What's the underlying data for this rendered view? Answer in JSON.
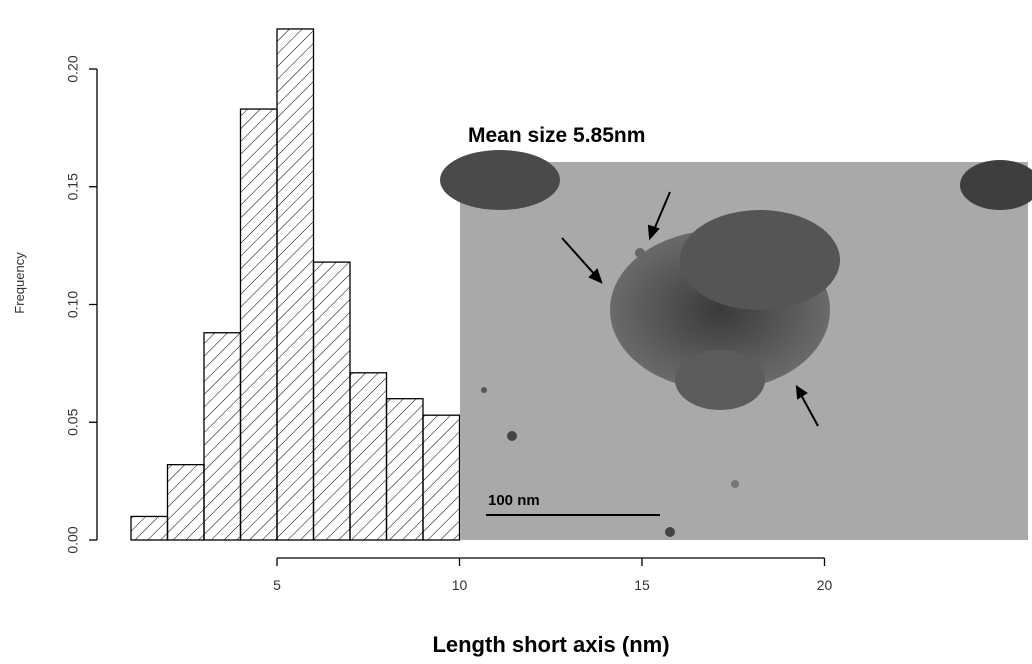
{
  "chart_data": {
    "type": "histogram",
    "xlabel": "Length short axis (nm)",
    "ylabel": "Frequency",
    "bins": [
      1,
      2,
      3,
      4,
      5,
      6,
      7,
      8,
      9,
      10
    ],
    "values": [
      0.01,
      0.032,
      0.088,
      0.183,
      0.217,
      0.118,
      0.071,
      0.06,
      0.053
    ],
    "color": "#000000",
    "hatch": true,
    "xlim": [
      0,
      25
    ],
    "xticks": [
      5,
      10,
      15,
      20
    ],
    "ylim": [
      0,
      0.2
    ],
    "yticks": [
      {
        "value": 0,
        "label": "0.00"
      },
      {
        "value": 0.05,
        "label": "0.05"
      },
      {
        "value": 0.1,
        "label": "0.10"
      },
      {
        "value": 0.15,
        "label": "0.15"
      },
      {
        "value": 0.2,
        "label": "0.20"
      }
    ],
    "annotations": [
      "Mean size 5.85nm"
    ],
    "inset_scale_label": "100 nm"
  }
}
